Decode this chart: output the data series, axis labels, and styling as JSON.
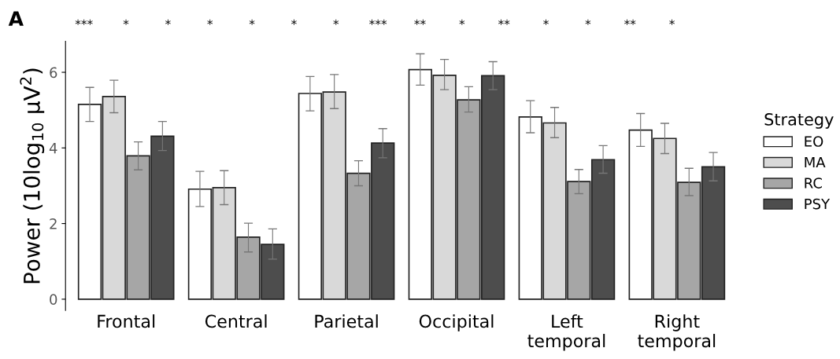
{
  "chart_data": {
    "type": "bar",
    "ylabel": "Power (10log$_{10}$ μV$^{2}$)",
    "legend_title": "Strategy",
    "categories": [
      "Frontal",
      "Central",
      "Parietal",
      "Occipital",
      "Left\ntemporal",
      "Right\ntemporal"
    ],
    "series": [
      {
        "name": "EO",
        "color": "#ffffff",
        "values": [
          5.15,
          2.91,
          5.44,
          6.07,
          4.82,
          4.47
        ],
        "errors": [
          [
            4.7,
            5.6
          ],
          [
            2.45,
            3.38
          ],
          [
            4.98,
            5.89
          ],
          [
            5.66,
            6.49
          ],
          [
            4.4,
            5.25
          ],
          [
            4.04,
            4.91
          ]
        ]
      },
      {
        "name": "MA",
        "color": "#d9d9d9",
        "values": [
          5.36,
          2.95,
          5.48,
          5.92,
          4.66,
          4.25
        ],
        "errors": [
          [
            4.93,
            5.79
          ],
          [
            2.5,
            3.4
          ],
          [
            5.04,
            5.94
          ],
          [
            5.54,
            6.34
          ],
          [
            4.27,
            5.07
          ],
          [
            3.85,
            4.65
          ]
        ]
      },
      {
        "name": "RC",
        "color": "#a6a6a6",
        "values": [
          3.79,
          1.64,
          3.33,
          5.27,
          3.11,
          3.09
        ],
        "errors": [
          [
            3.42,
            4.16
          ],
          [
            1.25,
            2.01
          ],
          [
            3.0,
            3.66
          ],
          [
            4.95,
            5.62
          ],
          [
            2.79,
            3.43
          ],
          [
            2.74,
            3.46
          ]
        ]
      },
      {
        "name": "PSY",
        "color": "#4d4d4d",
        "values": [
          4.31,
          1.45,
          4.13,
          5.91,
          3.69,
          3.5
        ],
        "errors": [
          [
            3.93,
            4.7
          ],
          [
            1.06,
            1.86
          ],
          [
            3.74,
            4.51
          ],
          [
            5.54,
            6.28
          ],
          [
            3.33,
            4.06
          ],
          [
            3.13,
            3.88
          ]
        ]
      }
    ],
    "ylim": [
      -0.3,
      6.82
    ],
    "yticks": [
      0,
      2,
      4,
      6
    ],
    "grid": false,
    "legend": "right",
    "annotations": [
      "A",
      "***",
      "*",
      "*",
      "*",
      "*",
      "*",
      "*",
      "***",
      "**",
      "*",
      "**",
      "*",
      "*",
      "**",
      "*"
    ]
  }
}
